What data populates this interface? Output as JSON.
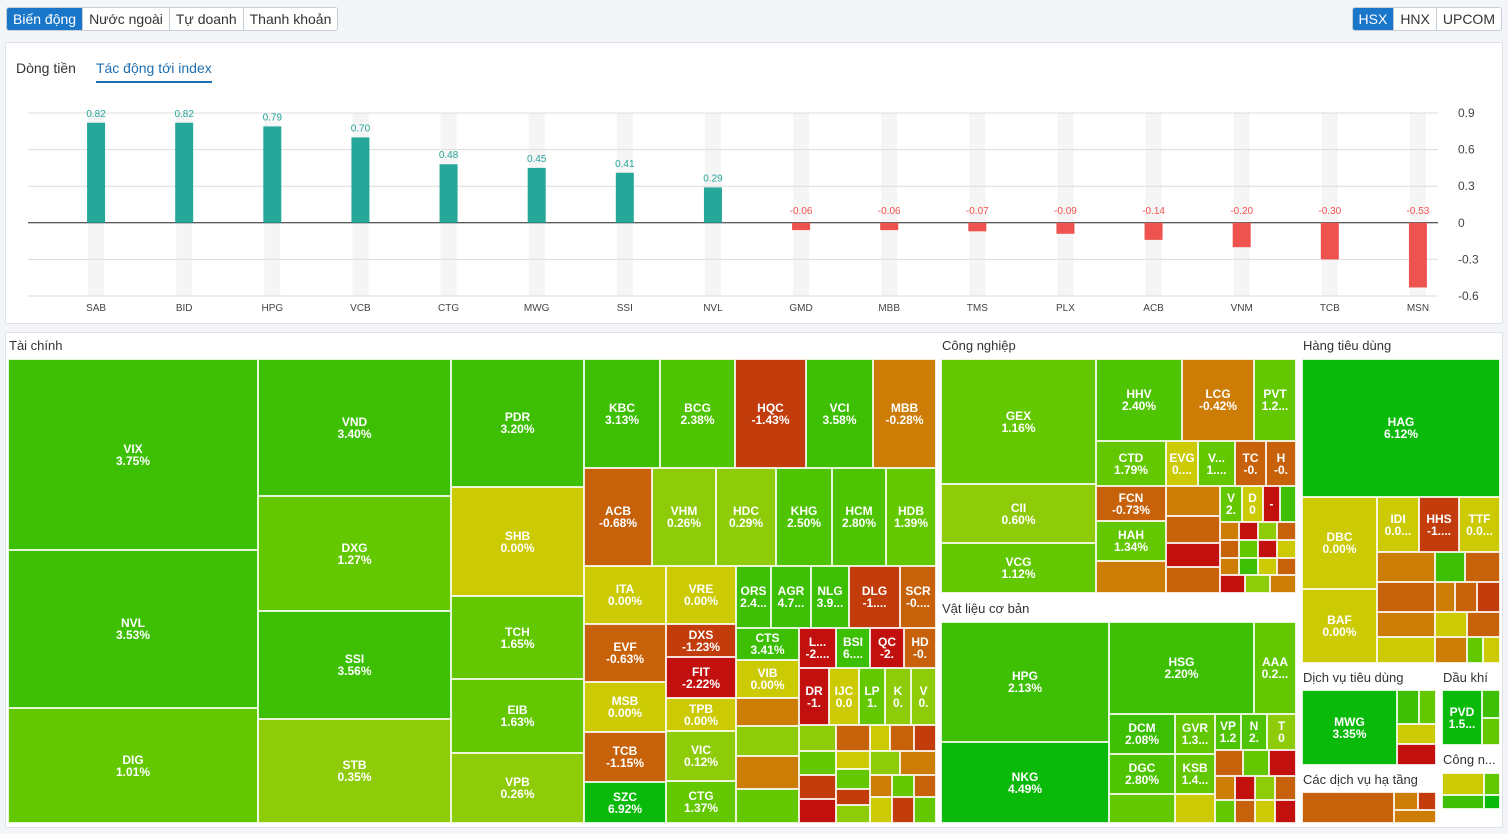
{
  "top_left_tabs": [
    {
      "label": "Biến động",
      "active": true
    },
    {
      "label": "Nước ngoài",
      "active": false
    },
    {
      "label": "Tự doanh",
      "active": false
    },
    {
      "label": "Thanh khoản",
      "active": false
    }
  ],
  "exchange_tabs": [
    {
      "label": "HSX",
      "active": true
    },
    {
      "label": "HNX",
      "active": false
    },
    {
      "label": "UPCOM",
      "active": false
    }
  ],
  "chart_tabs": [
    {
      "label": "Dòng tiền",
      "active": false
    },
    {
      "label": "Tác động tới index",
      "active": true
    }
  ],
  "colors": {
    "positive": "#27a69a",
    "negative": "#ef5350",
    "active_tab": "#1a76c9"
  },
  "chart_data": {
    "type": "bar",
    "categories": [
      "SAB",
      "BID",
      "HPG",
      "VCB",
      "CTG",
      "MWG",
      "SSI",
      "NVL",
      "GMD",
      "MBB",
      "TMS",
      "PLX",
      "ACB",
      "VNM",
      "TCB",
      "MSN"
    ],
    "values": [
      0.82,
      0.82,
      0.79,
      0.7,
      0.48,
      0.45,
      0.41,
      0.29,
      -0.06,
      -0.06,
      -0.07,
      -0.09,
      -0.14,
      -0.2,
      -0.3,
      -0.53
    ],
    "value_labels": [
      "0.82",
      "0.82",
      "0.79",
      "0.70",
      "0.48",
      "0.45",
      "0.41",
      "0.29",
      "-0.06",
      "-0.06",
      "-0.07",
      "-0.09",
      "-0.14",
      "-0.20",
      "-0.30",
      "-0.53"
    ],
    "y_ticks": [
      "0.9",
      "0.6",
      "0.3",
      "0",
      "-0.3",
      "-0.6"
    ],
    "ylim": [
      -0.6,
      0.9
    ],
    "grid": true
  },
  "treemap": {
    "sections": {
      "tai_chinh": "Tài chính",
      "cong_nghiep": "Công nghiệp",
      "hang_tieu_dung": "Hàng tiêu dùng",
      "vat_lieu": "Vật liệu cơ bản",
      "dich_vu": "Dịch vụ tiêu dùng",
      "dau_khi": "Dầu khí",
      "ha_tang": "Các dịch vụ hạ tầng",
      "cong_n": "Công n..."
    },
    "cells": [
      {
        "ticker": "VIX",
        "change": "3.75%"
      },
      {
        "ticker": "NVL",
        "change": "3.53%"
      },
      {
        "ticker": "DIG",
        "change": "1.01%"
      },
      {
        "ticker": "VND",
        "change": "3.40%"
      },
      {
        "ticker": "DXG",
        "change": "1.27%"
      },
      {
        "ticker": "SSI",
        "change": "3.56%"
      },
      {
        "ticker": "STB",
        "change": "0.35%"
      },
      {
        "ticker": "PDR",
        "change": "3.20%"
      },
      {
        "ticker": "SHB",
        "change": "0.00%"
      },
      {
        "ticker": "TCH",
        "change": "1.65%"
      },
      {
        "ticker": "EIB",
        "change": "1.63%"
      },
      {
        "ticker": "VPB",
        "change": "0.26%"
      },
      {
        "ticker": "KBC",
        "change": "3.13%"
      },
      {
        "ticker": "BCG",
        "change": "2.38%"
      },
      {
        "ticker": "HQC",
        "change": "-1.43%"
      },
      {
        "ticker": "VCI",
        "change": "3.58%"
      },
      {
        "ticker": "MBB",
        "change": "-0.28%"
      },
      {
        "ticker": "ACB",
        "change": "-0.68%"
      },
      {
        "ticker": "VHM",
        "change": "0.26%"
      },
      {
        "ticker": "HDC",
        "change": "0.29%"
      },
      {
        "ticker": "KHG",
        "change": "2.50%"
      },
      {
        "ticker": "HCM",
        "change": "2.80%"
      },
      {
        "ticker": "HDB",
        "change": "1.39%"
      },
      {
        "ticker": "ITA",
        "change": "0.00%"
      },
      {
        "ticker": "VRE",
        "change": "0.00%"
      },
      {
        "ticker": "ORS",
        "change": "2.4..."
      },
      {
        "ticker": "AGR",
        "change": "4.7..."
      },
      {
        "ticker": "NLG",
        "change": "3.9..."
      },
      {
        "ticker": "DLG",
        "change": "-1...."
      },
      {
        "ticker": "SCR",
        "change": "-0...."
      },
      {
        "ticker": "EVF",
        "change": "-0.63%"
      },
      {
        "ticker": "DXS",
        "change": "-1.23%"
      },
      {
        "ticker": "FIT",
        "change": "-2.22%"
      },
      {
        "ticker": "CTS",
        "change": "3.41%"
      },
      {
        "ticker": "L...",
        "change": "-2...."
      },
      {
        "ticker": "BSI",
        "change": "6...."
      },
      {
        "ticker": "QC",
        "change": "-2."
      },
      {
        "ticker": "HD",
        "change": "-0."
      },
      {
        "ticker": "MSB",
        "change": "0.00%"
      },
      {
        "ticker": "VIB",
        "change": "0.00%"
      },
      {
        "ticker": "TPB",
        "change": "0.00%"
      },
      {
        "ticker": "DR",
        "change": "-1."
      },
      {
        "ticker": "IJC",
        "change": "0.0"
      },
      {
        "ticker": "LP",
        "change": "1."
      },
      {
        "ticker": "K",
        "change": "0."
      },
      {
        "ticker": "V",
        "change": "0."
      },
      {
        "ticker": "TCB",
        "change": "-1.15%"
      },
      {
        "ticker": "VIC",
        "change": "0.12%"
      },
      {
        "ticker": "SZC",
        "change": "6.92%"
      },
      {
        "ticker": "CTG",
        "change": "1.37%"
      },
      {
        "ticker": "GEX",
        "change": "1.16%"
      },
      {
        "ticker": "CII",
        "change": "0.60%"
      },
      {
        "ticker": "VCG",
        "change": "1.12%"
      },
      {
        "ticker": "HHV",
        "change": "2.40%"
      },
      {
        "ticker": "LCG",
        "change": "-0.42%"
      },
      {
        "ticker": "PVT",
        "change": "1.2..."
      },
      {
        "ticker": "CTD",
        "change": "1.79%"
      },
      {
        "ticker": "EVG",
        "change": "0...."
      },
      {
        "ticker": "V...",
        "change": "1...."
      },
      {
        "ticker": "TC",
        "change": "-0."
      },
      {
        "ticker": "H",
        "change": "-0."
      },
      {
        "ticker": "FCN",
        "change": "-0.73%"
      },
      {
        "ticker": "HAH",
        "change": "1.34%"
      },
      {
        "ticker": "V",
        "change": "2."
      },
      {
        "ticker": "D",
        "change": "0"
      },
      {
        "ticker": "-",
        "change": ""
      },
      {
        "ticker": "HPG",
        "change": "2.13%"
      },
      {
        "ticker": "NKG",
        "change": "4.49%"
      },
      {
        "ticker": "HSG",
        "change": "2.20%"
      },
      {
        "ticker": "AAA",
        "change": "0.2..."
      },
      {
        "ticker": "DCM",
        "change": "2.08%"
      },
      {
        "ticker": "GVR",
        "change": "1.3..."
      },
      {
        "ticker": "VP",
        "change": "1.2"
      },
      {
        "ticker": "N",
        "change": "2."
      },
      {
        "ticker": "T",
        "change": "0"
      },
      {
        "ticker": "DGC",
        "change": "2.80%"
      },
      {
        "ticker": "KSB",
        "change": "1.4..."
      },
      {
        "ticker": "HAG",
        "change": "6.12%"
      },
      {
        "ticker": "DBC",
        "change": "0.00%"
      },
      {
        "ticker": "IDI",
        "change": "0.0..."
      },
      {
        "ticker": "HHS",
        "change": "-1...."
      },
      {
        "ticker": "TTF",
        "change": "0.0..."
      },
      {
        "ticker": "BAF",
        "change": "0.00%"
      },
      {
        "ticker": "MWG",
        "change": "3.35%"
      },
      {
        "ticker": "PVD",
        "change": "1.5..."
      }
    ]
  }
}
